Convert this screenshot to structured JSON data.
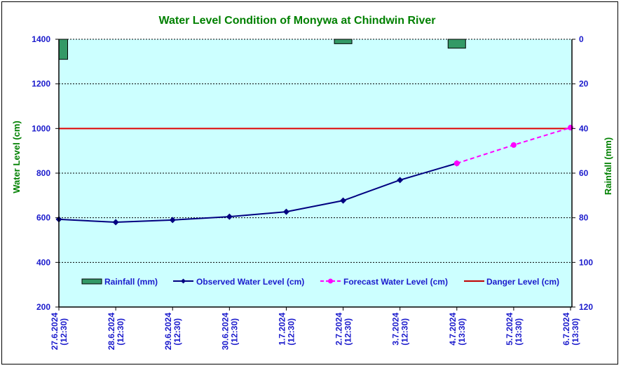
{
  "chart_data": {
    "type": "line",
    "title": "Water Level Condition of Monywa at Chindwin River",
    "xlabel": "",
    "ylabel": "Water Level (cm)",
    "y2label": "Rainfall (mm)",
    "ylim": [
      200,
      1400
    ],
    "yticks": [
      200,
      400,
      600,
      800,
      1000,
      1200,
      1400
    ],
    "y2lim": [
      0,
      120
    ],
    "y2ticks": [
      0,
      20,
      40,
      60,
      80,
      100,
      120
    ],
    "y2_inverted": true,
    "grid": true,
    "legend_position": "bottom-inside",
    "categories": [
      [
        "27.6.2024",
        "(12:30)"
      ],
      [
        "28.6.2024",
        "(12:30)"
      ],
      [
        "29.6.2024",
        "(12:30)"
      ],
      [
        "30.6.2024",
        "(12:30)"
      ],
      [
        "1.7.2024",
        "(12:30)"
      ],
      [
        "2.7.2024",
        "(12:30)"
      ],
      [
        "3.7.2024",
        "(12:30)"
      ],
      [
        "4.7.2024",
        "(13:30)"
      ],
      [
        "5.7.2024",
        "(13:30)"
      ],
      [
        "6.7.2024",
        "(13:30)"
      ]
    ],
    "series": [
      {
        "name": "Rainfall (mm)",
        "type": "bar",
        "axis": "y2",
        "color": "#339966",
        "values": [
          9,
          0,
          0,
          0,
          0,
          2,
          0,
          4,
          0,
          0
        ]
      },
      {
        "name": "Observed Water Level (cm)",
        "type": "line",
        "axis": "y",
        "color": "#000080",
        "marker": "diamond",
        "values": [
          593,
          580,
          590,
          605,
          627,
          677,
          769,
          844,
          null,
          null
        ]
      },
      {
        "name": "Forecast Water Level (cm)",
        "type": "line",
        "axis": "y",
        "color": "#ff00ff",
        "marker": "circle",
        "dashed": true,
        "values": [
          null,
          null,
          null,
          null,
          null,
          null,
          null,
          844,
          926,
          1004
        ]
      },
      {
        "name": "Danger Level (cm)",
        "type": "line",
        "axis": "y",
        "color": "#e00000",
        "values": [
          1000,
          1000,
          1000,
          1000,
          1000,
          1000,
          1000,
          1000,
          1000,
          1000
        ]
      }
    ],
    "colors": {
      "plot_background": "#ccffff",
      "title": "#008000",
      "tick_labels": "#1a1acc"
    }
  }
}
